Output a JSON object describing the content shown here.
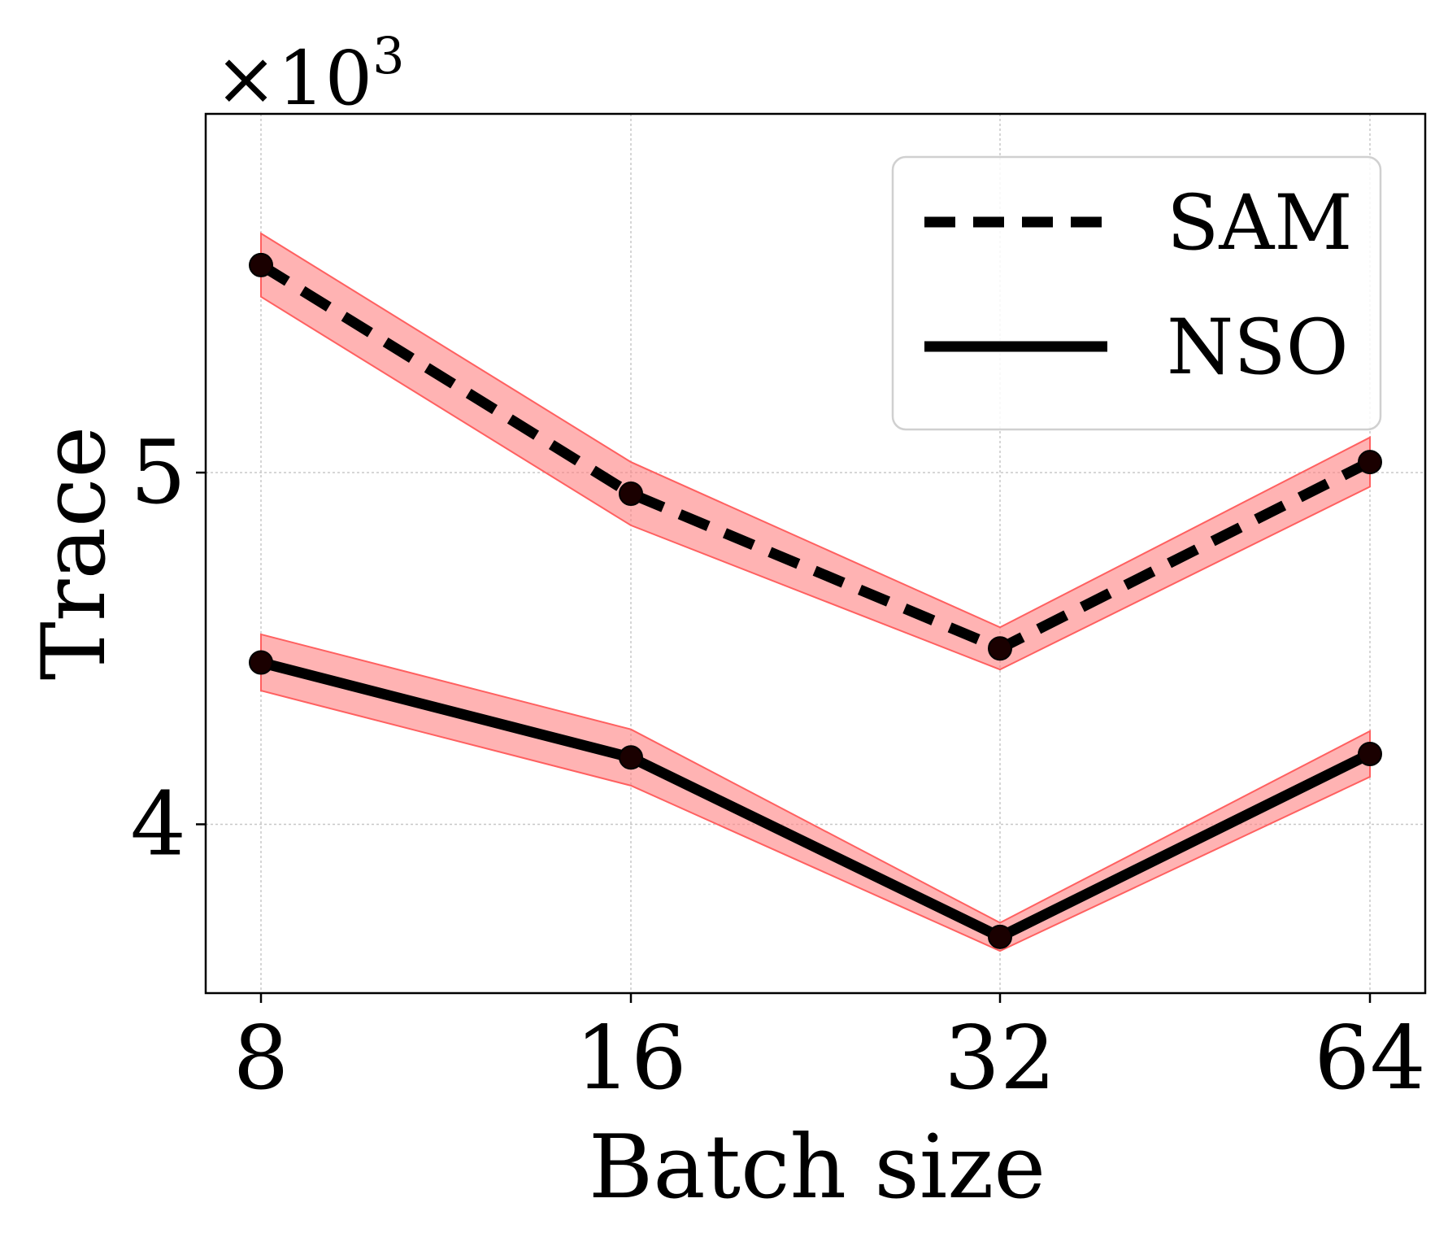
{
  "chart_data": {
    "type": "line",
    "title": "",
    "xlabel": "Batch size",
    "ylabel": "Trace",
    "y_scale_label_base": "×10",
    "y_scale_label_exponent": "3",
    "x_categories": [
      "8",
      "16",
      "32",
      "64"
    ],
    "yticks": [
      4,
      5
    ],
    "ytick_labels": [
      "4",
      "5"
    ],
    "ylim": [
      3.52,
      6.02
    ],
    "grid": true,
    "legend_position": "top-right",
    "series": [
      {
        "name": "SAM",
        "style": "dashed",
        "values": [
          5.59,
          4.94,
          4.5,
          5.03
        ],
        "band": [
          0.09,
          0.09,
          0.06,
          0.07
        ]
      },
      {
        "name": "NSO",
        "style": "solid",
        "values": [
          4.46,
          4.19,
          3.68,
          4.2
        ],
        "band": [
          0.08,
          0.08,
          0.04,
          0.065
        ]
      }
    ],
    "colors": {
      "line": "#000000",
      "band": "#ff8080",
      "band_edge": "#ff6060",
      "grid": "#c8c8c8",
      "legend_border": "#d0d0d0"
    }
  }
}
